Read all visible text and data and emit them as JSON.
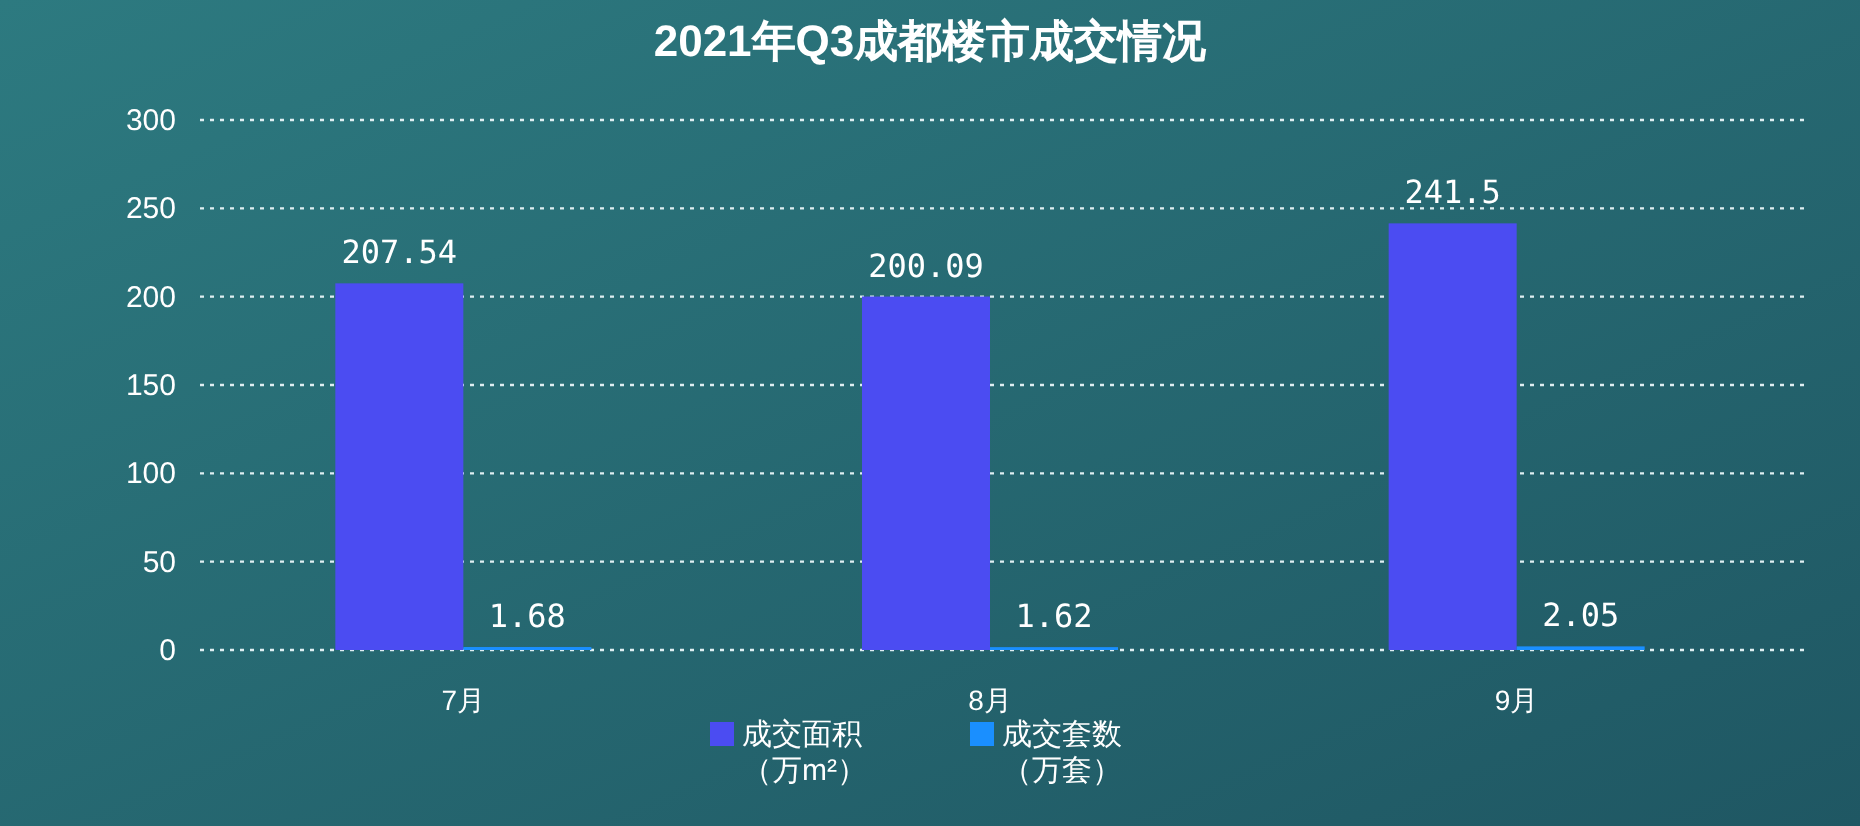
{
  "chart_data": {
    "type": "bar",
    "title": "2021年Q3成都楼市成交情况",
    "categories": [
      "7月",
      "8月",
      "9月"
    ],
    "series": [
      {
        "name": "成交面积（万m²）",
        "color": "#4b4cf2",
        "values": [
          207.54,
          200.09,
          241.5
        ]
      },
      {
        "name": "成交套数（万套）",
        "color": "#1a8fff",
        "values": [
          1.68,
          1.62,
          2.05
        ]
      }
    ],
    "ylim": [
      0,
      300
    ],
    "yticks": [
      0,
      50,
      100,
      150,
      200,
      250,
      300
    ],
    "grid": "y",
    "legend": "bottom",
    "data_labels": true
  }
}
